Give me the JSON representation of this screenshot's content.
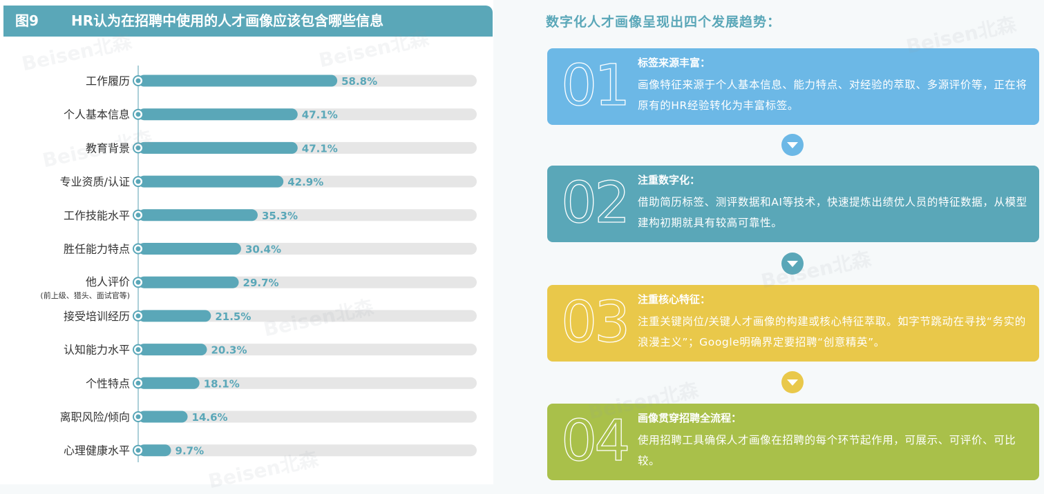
{
  "figure": {
    "number": "图9",
    "title": "HR认为在招聘中使用的人才画像应该包含哪些信息"
  },
  "colors": {
    "accent": "#5aa7b8",
    "track": "#e6e6e6",
    "card1": "#6cb8e6",
    "card2": "#5aa7b8",
    "card3": "#e9c84a",
    "card4": "#a9c04a"
  },
  "chart_data": {
    "type": "bar",
    "orientation": "horizontal",
    "title": "HR认为在招聘中使用的人才画像应该包含哪些信息",
    "categories": [
      "工作履历",
      "个人基本信息",
      "教育背景",
      "专业资质/认证",
      "工作技能水平",
      "胜任能力特点",
      "他人评价",
      "接受培训经历",
      "认知能力水平",
      "个性特点",
      "离职风险/倾向",
      "心理健康水平"
    ],
    "category_notes": [
      "",
      "",
      "",
      "",
      "",
      "",
      "(前上级、猎头、面试官等)",
      "",
      "",
      "",
      "",
      ""
    ],
    "values": [
      58.8,
      47.1,
      47.1,
      42.9,
      35.3,
      30.4,
      29.7,
      21.5,
      20.3,
      18.1,
      14.6,
      9.7
    ],
    "value_labels": [
      "58.8%",
      "47.1%",
      "47.1%",
      "42.9%",
      "35.3%",
      "30.4%",
      "29.7%",
      "21.5%",
      "20.3%",
      "18.1%",
      "14.6%",
      "9.7%"
    ],
    "xlim": [
      0,
      100
    ],
    "grid": false,
    "legend": "none"
  },
  "trends": {
    "title": "数字化人才画像呈现出四个发展趋势：",
    "cards": [
      {
        "num": "01",
        "title": "标签来源丰富：",
        "body": "画像特征来源于个人基本信息、能力特点、对经验的萃取、多源评价等，正在将原有的HR经验转化为丰富标签。"
      },
      {
        "num": "02",
        "title": "注重数字化：",
        "body": "借助简历标签、测评数据和AI等技术，快速提炼出绩优人员的特征数据，从模型建构初期就具有较高可靠性。"
      },
      {
        "num": "03",
        "title": "注重核心特征：",
        "body": "注重关键岗位/关键人才画像的构建或核心特征萃取。如字节跳动在寻找“务实的浪漫主义”；Google明确界定要招聘“创意精英”。"
      },
      {
        "num": "04",
        "title": "画像贯穿招聘全流程：",
        "body": "使用招聘工具确保人才画像在招聘的每个环节起作用，可展示、可评价、可比较。"
      }
    ]
  },
  "watermark": "Beisen北森"
}
